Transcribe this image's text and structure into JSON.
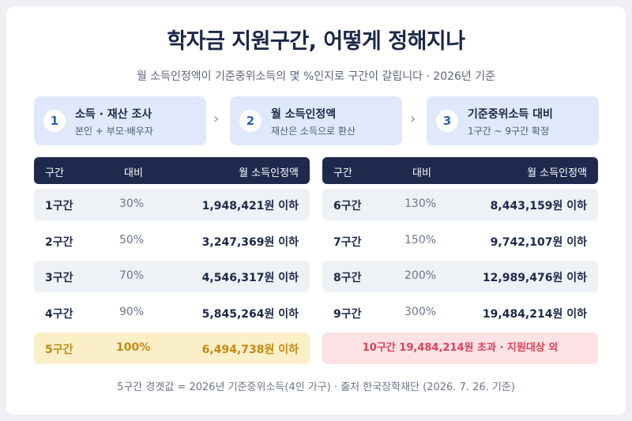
{
  "title": "학자금 지원구간, 어떻게 정해지나",
  "subtitle": "월 소득인정액이 기준중위소득의 몇 %인지로 구간이 갈립니다 · 2026년 기준",
  "steps": [
    {
      "num": "1",
      "title": "소득 · 재산 조사",
      "sub": "본인 + 부모·배우자"
    },
    {
      "num": "2",
      "title": "월 소득인정액",
      "sub": "재산은 소득으로 환산"
    },
    {
      "num": "3",
      "title": "기준중위소득 대비",
      "sub": "1구간 ~ 9구간 확정"
    }
  ],
  "arrow": "›",
  "table_headers": {
    "section": "구간",
    "ratio": "대비",
    "amount": "월 소득인정액"
  },
  "left_rows": [
    {
      "section": "1구간",
      "ratio": "30%",
      "amount": "1,948,421원 이하"
    },
    {
      "section": "2구간",
      "ratio": "50%",
      "amount": "3,247,369원 이하"
    },
    {
      "section": "3구간",
      "ratio": "70%",
      "amount": "4,546,317원 이하"
    },
    {
      "section": "4구간",
      "ratio": "90%",
      "amount": "5,845,264원 이하"
    },
    {
      "section": "5구간",
      "ratio": "100%",
      "amount": "6,494,738원 이하"
    }
  ],
  "right_rows": [
    {
      "section": "6구간",
      "ratio": "130%",
      "amount": "8,443,159원 이하"
    },
    {
      "section": "7구간",
      "ratio": "150%",
      "amount": "9,742,107원 이하"
    },
    {
      "section": "8구간",
      "ratio": "200%",
      "amount": "12,989,476원 이하"
    },
    {
      "section": "9구간",
      "ratio": "300%",
      "amount": "19,484,214원 이하"
    }
  ],
  "exclusion_note": "10구간 19,484,214원 초과 · 지원대상 외",
  "footer": "5구간 경곗값 = 2026년 기준중위소득(4인 가구) · 출처 한국장학재단 (2026. 7. 26. 기준)",
  "colors": {
    "navy": "#1d2a4d",
    "step_bg": "#dfe9fb",
    "highlight": "#fbefc8",
    "highlight_text": "#c08a14",
    "exclusion_bg": "#fbe2e4",
    "exclusion_text": "#d9415a"
  }
}
